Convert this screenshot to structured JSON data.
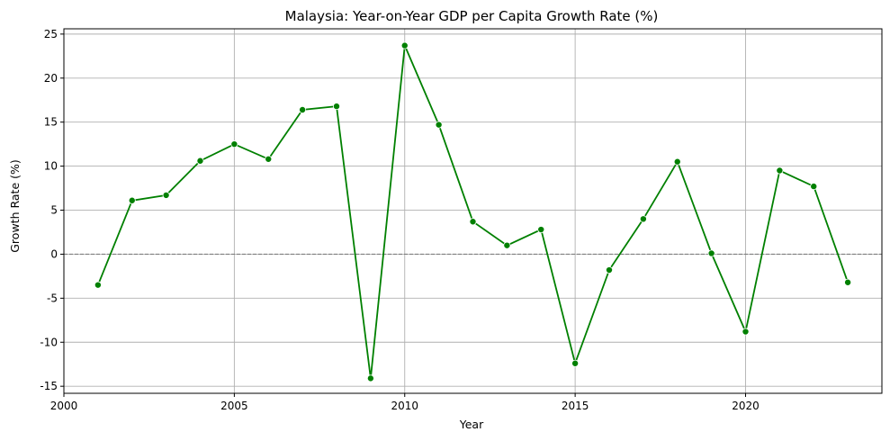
{
  "chart_data": {
    "type": "line",
    "title": "Malaysia: Year-on-Year GDP per Capita Growth Rate (%)",
    "xlabel": "Year",
    "ylabel": "Growth Rate (%)",
    "xlim": [
      2000,
      2024
    ],
    "ylim": [
      -15.8,
      25.6
    ],
    "xticks": [
      2000,
      2005,
      2010,
      2015,
      2020
    ],
    "yticks": [
      -15,
      -10,
      -5,
      0,
      5,
      10,
      15,
      20,
      25
    ],
    "grid": true,
    "reference_line": {
      "y": 0,
      "style": "dashed",
      "color": "#808080"
    },
    "series": [
      {
        "color": "#008000",
        "marker": "circle",
        "x": [
          2001,
          2002,
          2003,
          2004,
          2005,
          2006,
          2007,
          2008,
          2009,
          2010,
          2011,
          2012,
          2013,
          2014,
          2015,
          2016,
          2017,
          2018,
          2019,
          2020,
          2021,
          2022,
          2023
        ],
        "values": [
          -3.5,
          6.1,
          6.7,
          10.6,
          12.5,
          10.8,
          16.4,
          16.8,
          -14.1,
          23.7,
          14.7,
          3.7,
          1.0,
          2.8,
          -12.4,
          -1.8,
          4.0,
          10.5,
          0.1,
          -8.8,
          9.5,
          7.7,
          -3.2
        ]
      }
    ]
  }
}
